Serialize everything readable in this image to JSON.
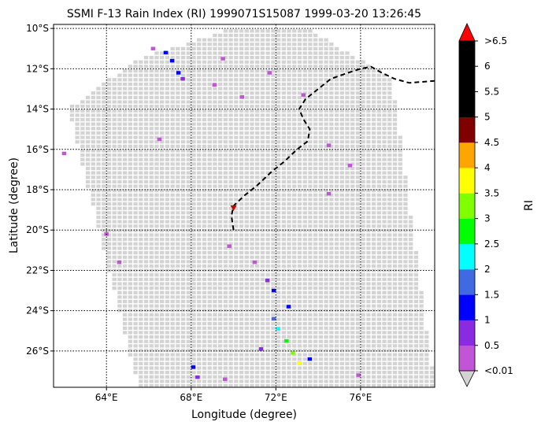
{
  "title": "SSMI F-13 Rain Index (RI) 1999071S15087 1999-03-20 13:26:45",
  "xlabel": "Longitude (degree)",
  "ylabel": "Latitude (degree)",
  "colorbar": {
    "label": "RI",
    "bounds": [
      0.01,
      0.5,
      1,
      1.5,
      2,
      2.5,
      3,
      3.5,
      4,
      4.5,
      5,
      5.5,
      6,
      6.5
    ],
    "tick_labels": [
      "<0.01",
      "0.5",
      "1",
      "1.5",
      "2",
      "2.5",
      "3",
      "3.5",
      "4",
      "4.5",
      "5",
      "5.5",
      "6",
      ">6.5"
    ],
    "colors": [
      "#c155d6",
      "#8a2be2",
      "#0000ff",
      "#4169e1",
      "#00ffff",
      "#00ff00",
      "#7fff00",
      "#ffff00",
      "#ffa500",
      "#800000",
      "#000000",
      "#000000",
      "#000000"
    ],
    "under_color": "#d3d3d3",
    "over_color": "#ff0000"
  },
  "chart_data": {
    "type": "heatmap",
    "projection": "lon-lat",
    "xlim": [
      61.5,
      79.5
    ],
    "ylim": [
      -27.8,
      -9.8
    ],
    "xticks": [
      64,
      68,
      72,
      76
    ],
    "xtick_labels": [
      "64°E",
      "68°E",
      "72°E",
      "76°E"
    ],
    "yticks": [
      -10,
      -12,
      -14,
      -16,
      -18,
      -20,
      -22,
      -24,
      -26
    ],
    "ytick_labels": [
      "10°S",
      "12°S",
      "14°S",
      "16°S",
      "18°S",
      "20°S",
      "22°S",
      "24°S",
      "26°S"
    ],
    "grid": true,
    "swath_corners": [
      [
        62.2,
        -14.0
      ],
      [
        65.5,
        -11.5
      ],
      [
        70.0,
        -10.0
      ],
      [
        73.5,
        -10.0
      ],
      [
        77.5,
        -12.5
      ],
      [
        79.5,
        -27.8
      ],
      [
        65.5,
        -27.8
      ]
    ],
    "rain_cells": [
      {
        "lon": 66.8,
        "lat": -11.2,
        "ri": 1.2
      },
      {
        "lon": 67.1,
        "lat": -11.6,
        "ri": 1.4
      },
      {
        "lon": 67.4,
        "lat": -12.2,
        "ri": 1.1
      },
      {
        "lon": 67.6,
        "lat": -12.5,
        "ri": 0.7
      },
      {
        "lon": 66.2,
        "lat": -11.0,
        "ri": 0.4
      },
      {
        "lon": 69.1,
        "lat": -12.8,
        "ri": 0.3
      },
      {
        "lon": 69.5,
        "lat": -11.5,
        "ri": 0.2
      },
      {
        "lon": 71.7,
        "lat": -12.2,
        "ri": 0.3
      },
      {
        "lon": 70.4,
        "lat": -13.4,
        "ri": 0.2
      },
      {
        "lon": 73.3,
        "lat": -13.3,
        "ri": 0.3
      },
      {
        "lon": 74.5,
        "lat": -15.8,
        "ri": 0.2
      },
      {
        "lon": 75.5,
        "lat": -16.8,
        "ri": 0.3
      },
      {
        "lon": 62.0,
        "lat": -16.2,
        "ri": 0.2
      },
      {
        "lon": 66.5,
        "lat": -15.5,
        "ri": 0.2
      },
      {
        "lon": 64.0,
        "lat": -20.2,
        "ri": 0.2
      },
      {
        "lon": 64.6,
        "lat": -21.6,
        "ri": 0.2
      },
      {
        "lon": 74.5,
        "lat": -18.2,
        "ri": 0.2
      },
      {
        "lon": 69.8,
        "lat": -20.8,
        "ri": 0.3
      },
      {
        "lon": 71.0,
        "lat": -21.6,
        "ri": 0.4
      },
      {
        "lon": 71.6,
        "lat": -22.5,
        "ri": 0.7
      },
      {
        "lon": 71.9,
        "lat": -23.0,
        "ri": 1.0
      },
      {
        "lon": 72.6,
        "lat": -23.8,
        "ri": 1.2
      },
      {
        "lon": 71.9,
        "lat": -24.4,
        "ri": 1.6
      },
      {
        "lon": 72.1,
        "lat": -24.9,
        "ri": 2.3
      },
      {
        "lon": 72.5,
        "lat": -25.5,
        "ri": 2.8
      },
      {
        "lon": 72.8,
        "lat": -26.1,
        "ri": 3.1
      },
      {
        "lon": 73.1,
        "lat": -26.6,
        "ri": 3.6
      },
      {
        "lon": 73.6,
        "lat": -26.4,
        "ri": 1.2
      },
      {
        "lon": 71.3,
        "lat": -25.9,
        "ri": 0.9
      },
      {
        "lon": 68.1,
        "lat": -26.8,
        "ri": 1.3
      },
      {
        "lon": 68.3,
        "lat": -27.3,
        "ri": 0.8
      },
      {
        "lon": 69.6,
        "lat": -27.4,
        "ri": 0.3
      },
      {
        "lon": 75.9,
        "lat": -27.2,
        "ri": 0.2
      }
    ],
    "track": [
      [
        70.0,
        -20.0
      ],
      [
        69.9,
        -19.3
      ],
      [
        70.0,
        -18.8
      ],
      [
        70.5,
        -18.3
      ],
      [
        71.1,
        -17.8
      ],
      [
        71.8,
        -17.1
      ],
      [
        72.4,
        -16.6
      ],
      [
        73.0,
        -16.0
      ],
      [
        73.5,
        -15.6
      ],
      [
        73.6,
        -15.0
      ],
      [
        73.3,
        -14.5
      ],
      [
        73.1,
        -14.0
      ],
      [
        73.4,
        -13.5
      ],
      [
        74.0,
        -13.0
      ],
      [
        74.6,
        -12.5
      ],
      [
        75.4,
        -12.2
      ],
      [
        76.0,
        -12.0
      ],
      [
        76.5,
        -11.9
      ],
      [
        77.0,
        -12.2
      ],
      [
        77.6,
        -12.5
      ],
      [
        78.3,
        -12.7
      ],
      [
        79.5,
        -12.6
      ]
    ],
    "storm_marker": [
      70.0,
      -18.9
    ]
  }
}
